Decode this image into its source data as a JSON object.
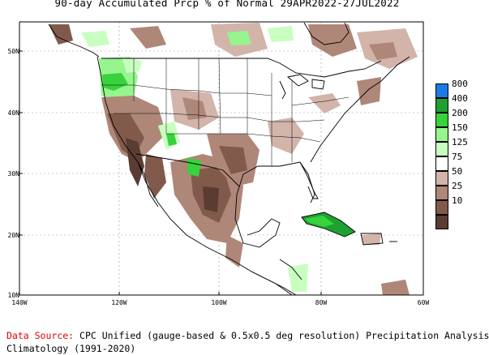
{
  "title": "90-day Accumulated Prcp % of Normal 29APR2022-27JUL2022",
  "axes": {
    "y_labels": [
      "50N",
      "40N",
      "30N",
      "20N",
      "10N"
    ],
    "x_labels": [
      "140W",
      "120W",
      "100W",
      "80W",
      "60W"
    ]
  },
  "legend": {
    "items": [
      {
        "label": "800",
        "color": "#1e78e6"
      },
      {
        "label": "400",
        "color": "#1fa032"
      },
      {
        "label": "200",
        "color": "#37d23c"
      },
      {
        "label": "150",
        "color": "#96f58c"
      },
      {
        "label": "125",
        "color": "#c8ffc0"
      },
      {
        "label": "75",
        "color": "#ffffff"
      },
      {
        "label": "50",
        "color": "#d2b4aa"
      },
      {
        "label": "25",
        "color": "#af8778"
      },
      {
        "label": "10",
        "color": "#825a4b"
      },
      {
        "label": "",
        "color": "#5a3c32"
      }
    ]
  },
  "footer": {
    "source_label": "Data Source:",
    "source_text": " CPC Unified (gauge-based & 0.5x0.5 deg resolution) Precipitation Analysis",
    "climatology": "Climatology (1991-2020)"
  }
}
